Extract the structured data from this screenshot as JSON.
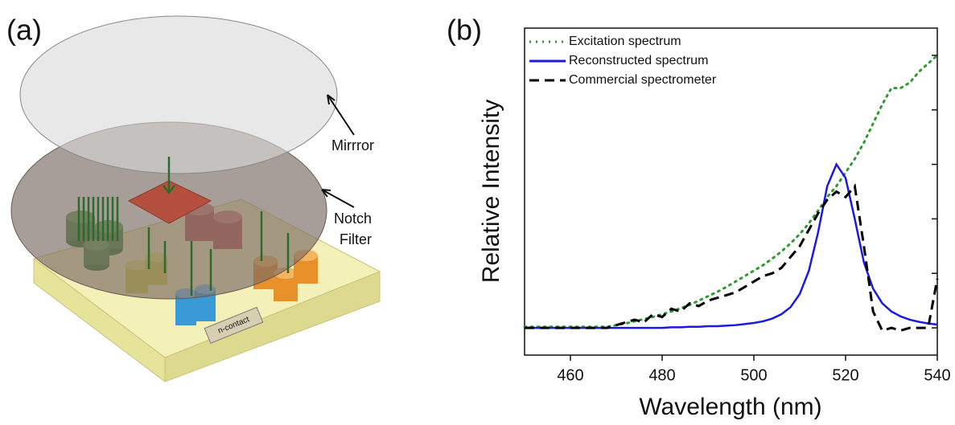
{
  "panel_a": {
    "label": "(a)",
    "mirror_label": "Mirrror",
    "filter_label": [
      "Notch",
      "Filter"
    ],
    "contact_label": "n-contact"
  },
  "chart_data": {
    "type": "line",
    "label": "(b)",
    "x_label": "Wavelength (nm)",
    "y_label": "Relative Intensity",
    "x": [
      450,
      452,
      454,
      456,
      458,
      460,
      462,
      464,
      466,
      468,
      470,
      472,
      474,
      476,
      478,
      480,
      482,
      484,
      486,
      488,
      490,
      492,
      494,
      496,
      498,
      500,
      502,
      504,
      506,
      508,
      510,
      512,
      514,
      516,
      518,
      520,
      522,
      524,
      526,
      528,
      530,
      532,
      534,
      536,
      538,
      540
    ],
    "series": [
      {
        "name": "Excitation spectrum",
        "color": "#2f9a2f",
        "dash": "dotted",
        "values": [
          0.02,
          0.02,
          0.02,
          0.02,
          0.02,
          0.02,
          0.02,
          0.02,
          0.02,
          0.02,
          0.05,
          0.08,
          0.12,
          0.16,
          0.2,
          0.25,
          0.3,
          0.36,
          0.42,
          0.5,
          0.58,
          0.66,
          0.75,
          0.85,
          0.95,
          1.05,
          1.15,
          1.27,
          1.4,
          1.55,
          1.72,
          1.92,
          2.15,
          2.4,
          2.6,
          2.85,
          3.1,
          3.4,
          3.75,
          4.1,
          4.4,
          4.4,
          4.5,
          4.7,
          4.85,
          5.0
        ]
      },
      {
        "name": "Reconstructed spectrum",
        "color": "#1a1ae0",
        "dash": "solid",
        "values": [
          0,
          0,
          0,
          0,
          0,
          0,
          0,
          0,
          0,
          0,
          0,
          0,
          0,
          0,
          0,
          0,
          0.01,
          0.01,
          0.02,
          0.02,
          0.03,
          0.03,
          0.04,
          0.05,
          0.07,
          0.09,
          0.12,
          0.17,
          0.25,
          0.38,
          0.62,
          1.05,
          1.75,
          2.6,
          3.0,
          2.75,
          2.0,
          1.2,
          0.72,
          0.45,
          0.3,
          0.21,
          0.15,
          0.11,
          0.08,
          0.06
        ]
      },
      {
        "name": "Commercial spectrometer",
        "color": "#000000",
        "dash": "dashed",
        "values": [
          0,
          0,
          0,
          0,
          0,
          0,
          0,
          0,
          0,
          0,
          0.05,
          0.1,
          0.15,
          0.1,
          0.25,
          0.2,
          0.35,
          0.3,
          0.45,
          0.4,
          0.5,
          0.55,
          0.6,
          0.65,
          0.75,
          0.85,
          0.95,
          1.0,
          1.1,
          1.3,
          1.5,
          1.8,
          2.1,
          2.35,
          2.5,
          2.4,
          2.6,
          1.5,
          0.3,
          -0.05,
          0,
          -0.05,
          0,
          0,
          0,
          0.9
        ]
      }
    ],
    "xlim": [
      450,
      540
    ],
    "xticks": [
      460,
      480,
      500,
      520,
      540
    ],
    "ylim": [
      -0.5,
      5.5
    ],
    "yticks": [
      0,
      1,
      2,
      3,
      4,
      5
    ]
  }
}
